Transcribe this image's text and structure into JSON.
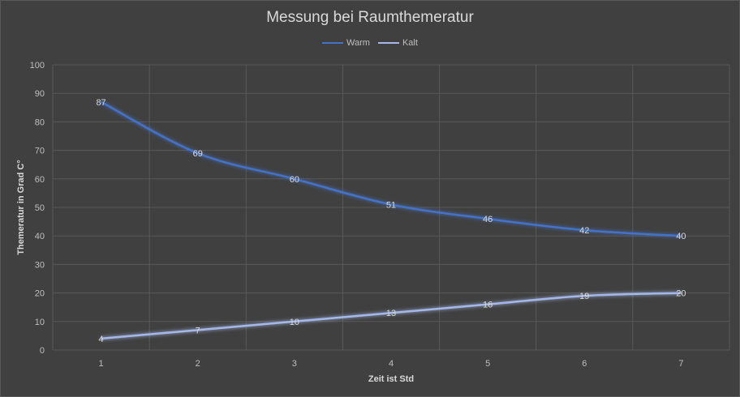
{
  "chart_data": {
    "type": "line",
    "title": "Messung bei Raumthemeratur",
    "xlabel": "Zeit ist Std",
    "ylabel": "Themeratur in Grad C°",
    "x": [
      1,
      2,
      3,
      4,
      5,
      6,
      7
    ],
    "ylim": [
      0,
      100
    ],
    "yticks": [
      0,
      10,
      20,
      30,
      40,
      50,
      60,
      70,
      80,
      90,
      100
    ],
    "grid": true,
    "legend_position": "top",
    "series": [
      {
        "name": "Warm",
        "values": [
          87,
          69,
          60,
          51,
          46,
          42,
          40
        ],
        "color": "#4472c4"
      },
      {
        "name": "Kalt",
        "values": [
          4,
          7,
          10,
          13,
          16,
          19,
          20
        ],
        "color": "#a5b7e6"
      }
    ]
  }
}
